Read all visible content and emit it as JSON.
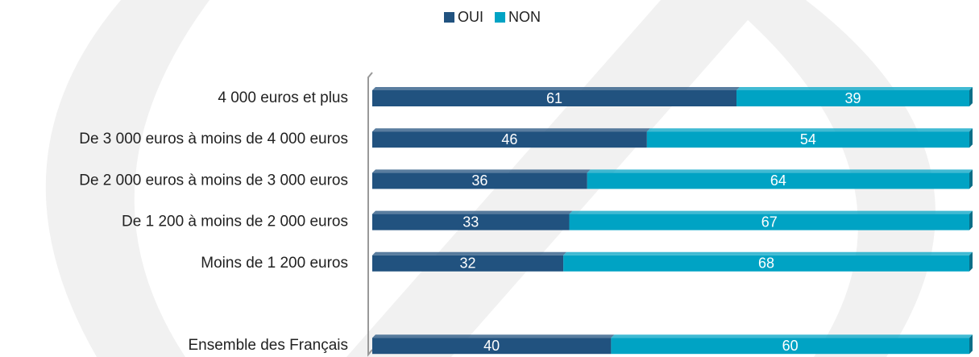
{
  "chart_data": {
    "type": "bar",
    "orientation": "horizontal",
    "stacked": true,
    "categories": [
      "4 000 euros et plus",
      "De 3 000 euros à moins de 4 000 euros",
      "De 2 000 euros à moins de 3 000 euros",
      "De 1 200 à moins de 2 000 euros",
      "Moins de 1 200 euros",
      null,
      "Ensemble des Français"
    ],
    "series": [
      {
        "name": "OUI",
        "color": "#21527f",
        "values": [
          61,
          46,
          36,
          33,
          32,
          null,
          40
        ]
      },
      {
        "name": "NON",
        "color": "#00a3c4",
        "values": [
          39,
          54,
          64,
          67,
          68,
          null,
          60
        ]
      }
    ],
    "xlim": [
      0,
      100
    ],
    "legend": "top"
  }
}
